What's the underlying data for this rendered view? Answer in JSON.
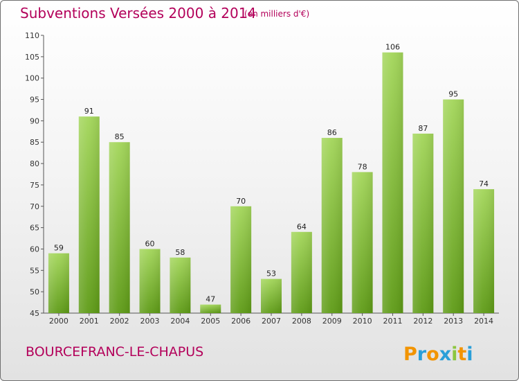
{
  "header": {
    "title": "Subventions Versées 2000 à 2014",
    "subtitle": "(en milliers d'€)"
  },
  "footer": {
    "commune": "BOURCEFRANC-LE-CHAPUS",
    "logo_text": "Proxiti"
  },
  "colors": {
    "title": "#b3005a",
    "bar_top": "#a3d65a",
    "bar_bottom": "#5e9b16",
    "logo_P": "#f29400",
    "logo_r": "#2a9fd8",
    "logo_o": "#f29400",
    "logo_x": "#2a9fd8",
    "logo_i": "#8cc63f",
    "logo_t": "#f29400",
    "logo_i2": "#2a9fd8"
  },
  "chart_data": {
    "type": "bar",
    "title": "Subventions Versées 2000 à 2014",
    "subtitle": "(en milliers d'€)",
    "categories": [
      "2000",
      "2001",
      "2002",
      "2003",
      "2004",
      "2005",
      "2006",
      "2007",
      "2008",
      "2009",
      "2010",
      "2011",
      "2012",
      "2013",
      "2014"
    ],
    "values": [
      59,
      91,
      85,
      60,
      58,
      47,
      70,
      53,
      64,
      86,
      78,
      106,
      87,
      95,
      74
    ],
    "ylim": [
      45,
      110
    ],
    "yticks": [
      45,
      50,
      55,
      60,
      65,
      70,
      75,
      80,
      85,
      90,
      95,
      100,
      105,
      110
    ],
    "grid": false,
    "data_labels": true
  }
}
